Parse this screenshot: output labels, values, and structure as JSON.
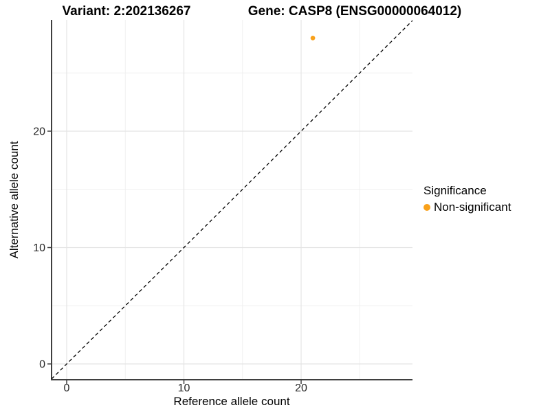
{
  "chart_data": {
    "type": "scatter",
    "title_left": "Variant: 2:202136267",
    "title_right": "Gene: CASP8 (ENSG00000064012)",
    "xlabel": "Reference allele count",
    "ylabel": "Alternative allele count",
    "xlim": [
      -1.4,
      29.6
    ],
    "ylim": [
      -1.4,
      29.6
    ],
    "x_major_ticks": [
      0,
      10,
      20
    ],
    "y_major_ticks": [
      0,
      10,
      20
    ],
    "x_minor_ticks": [
      5,
      15,
      25
    ],
    "y_minor_ticks": [
      5,
      15,
      25
    ],
    "grid": "major+minor",
    "legend_position": "right",
    "series": [
      {
        "name": "Non-significant",
        "color": "#F9A11B",
        "points": [
          {
            "x": 21,
            "y": 28
          }
        ]
      }
    ],
    "reference_line": {
      "slope": 1,
      "intercept": 0,
      "style": "dashed",
      "color": "#000000"
    },
    "legend": {
      "title": "Significance",
      "items": [
        {
          "label": "Non-significant",
          "color": "#F9A11B"
        }
      ]
    }
  },
  "colors": {
    "point_orange": "#F9A11B",
    "axis_line": "#3f3f3f",
    "tick_label": "#262626",
    "grid_major": "#e4e4e4",
    "grid_minor": "#f0f0f0",
    "background": "#ffffff"
  }
}
